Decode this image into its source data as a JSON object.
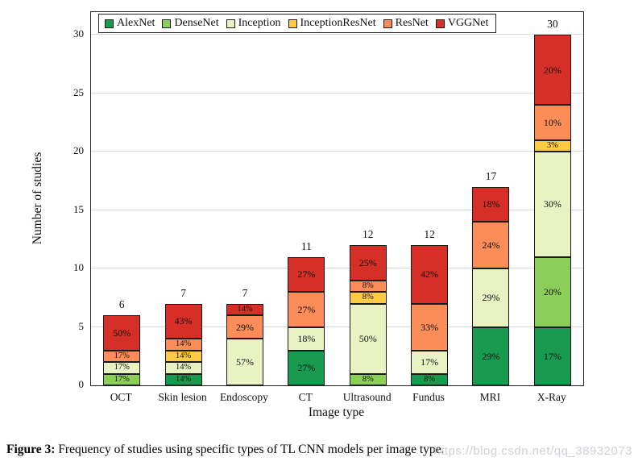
{
  "figure": {
    "caption_label": "Figure 3:",
    "caption_text": " Frequency of studies using specific types of TL CNN models per image type.",
    "watermark": "https://blog.csdn.net/qq_38932073"
  },
  "chart_data": {
    "type": "bar",
    "stacked": true,
    "title": "",
    "xlabel": "Image type",
    "ylabel": "Number of studies",
    "ylim": [
      0,
      32
    ],
    "yticks": [
      0,
      5,
      10,
      15,
      20,
      25,
      30
    ],
    "grid": "horizontal",
    "legend_position": "top-left-inside",
    "categories": [
      "OCT",
      "Skin lesion",
      "Endoscopy",
      "CT",
      "Ultrasound",
      "Fundus",
      "MRI",
      "X-Ray"
    ],
    "totals": [
      6,
      7,
      7,
      11,
      12,
      12,
      17,
      30
    ],
    "series": [
      {
        "name": "AlexNet",
        "color": "#189a50",
        "values": [
          0,
          1,
          0,
          3,
          0,
          1,
          5,
          5
        ],
        "labels": [
          "",
          "14%",
          "",
          "27%",
          "",
          "8%",
          "29%",
          "17%"
        ]
      },
      {
        "name": "DenseNet",
        "color": "#8bce5a",
        "values": [
          1,
          0,
          0,
          0,
          1,
          0,
          0,
          6
        ],
        "labels": [
          "17%",
          "",
          "",
          "",
          "8%",
          "",
          "",
          "20%"
        ]
      },
      {
        "name": "Inception",
        "color": "#e8f2c3",
        "values": [
          1,
          1,
          4,
          2,
          6,
          2,
          5,
          9
        ],
        "labels": [
          "17%",
          "14%",
          "57%",
          "18%",
          "50%",
          "17%",
          "29%",
          "30%"
        ]
      },
      {
        "name": "InceptionResNet",
        "color": "#fdca43",
        "values": [
          0,
          1,
          0,
          0,
          1,
          0,
          0,
          1
        ],
        "labels": [
          "",
          "14%",
          "",
          "",
          "8%",
          "",
          "",
          "3%"
        ]
      },
      {
        "name": "ResNet",
        "color": "#fc8d59",
        "values": [
          1,
          1,
          2,
          3,
          1,
          4,
          4,
          3
        ],
        "labels": [
          "17%",
          "14%",
          "29%",
          "27%",
          "8%",
          "33%",
          "24%",
          "10%"
        ]
      },
      {
        "name": "VGGNet",
        "color": "#d62f27",
        "values": [
          3,
          3,
          1,
          3,
          3,
          5,
          3,
          6
        ],
        "labels": [
          "50%",
          "43%",
          "14%",
          "27%",
          "25%",
          "42%",
          "18%",
          "20%"
        ]
      }
    ]
  }
}
